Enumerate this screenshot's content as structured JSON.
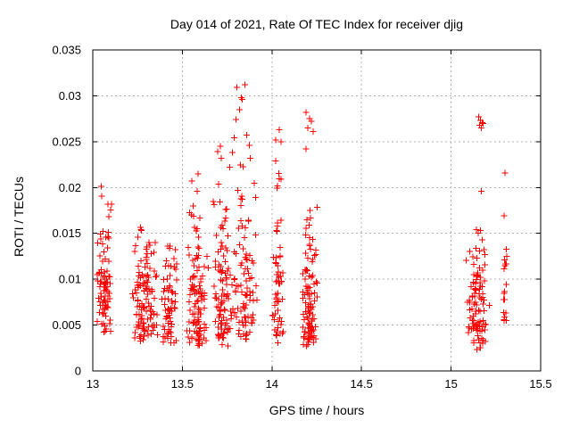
{
  "chart_data": {
    "type": "scatter",
    "title": "Day 014 of 2021, Rate Of TEC Index for receiver djig",
    "xlabel": "GPS time / hours",
    "ylabel": "ROTI / TECUs",
    "xlim": [
      13,
      15.5
    ],
    "ylim": [
      0,
      0.035
    ],
    "x_ticks": [
      13,
      13.5,
      14,
      14.5,
      15,
      15.5
    ],
    "x_tick_labels": [
      "13",
      "13.5",
      "14",
      "14.5",
      "15",
      "15.5"
    ],
    "y_ticks": [
      0,
      0.005,
      0.01,
      0.015,
      0.02,
      0.025,
      0.03,
      0.035
    ],
    "y_tick_labels": [
      "0",
      "0.005",
      "0.01",
      "0.015",
      "0.02",
      "0.025",
      "0.03",
      "0.035"
    ],
    "grid": true,
    "grid_color": "#b0b0b0",
    "frame_color": "#000000",
    "marker": {
      "shape": "plus",
      "color": "#ff0000",
      "size": 7
    },
    "seed": 7,
    "clusters": [
      {
        "name": "arc-13.06",
        "x_center": 13.065,
        "x_halfwidth": 0.045,
        "bands": [
          [
            0.0042,
            0.006,
            10
          ],
          [
            0.006,
            0.0085,
            28
          ],
          [
            0.0085,
            0.0105,
            22
          ],
          [
            0.0105,
            0.013,
            12
          ],
          [
            0.013,
            0.016,
            10
          ],
          [
            0.016,
            0.0185,
            4
          ],
          [
            0.019,
            0.0206,
            2
          ]
        ]
      },
      {
        "name": "arc-13.29",
        "x_center": 13.295,
        "x_halfwidth": 0.075,
        "bands": [
          [
            0.0032,
            0.0045,
            15
          ],
          [
            0.0045,
            0.007,
            35
          ],
          [
            0.007,
            0.0095,
            30
          ],
          [
            0.0095,
            0.012,
            20
          ],
          [
            0.012,
            0.0145,
            12
          ],
          [
            0.0145,
            0.016,
            4
          ]
        ]
      },
      {
        "name": "arc-13.43",
        "x_center": 13.43,
        "x_halfwidth": 0.05,
        "bands": [
          [
            0.003,
            0.0045,
            12
          ],
          [
            0.0045,
            0.007,
            22
          ],
          [
            0.007,
            0.0095,
            16
          ],
          [
            0.0095,
            0.012,
            10
          ],
          [
            0.012,
            0.0152,
            6
          ]
        ]
      },
      {
        "name": "arc-13.58",
        "x_center": 13.585,
        "x_halfwidth": 0.065,
        "bands": [
          [
            0.0026,
            0.004,
            16
          ],
          [
            0.004,
            0.0065,
            28
          ],
          [
            0.0065,
            0.009,
            26
          ],
          [
            0.009,
            0.0115,
            18
          ],
          [
            0.0115,
            0.014,
            10
          ],
          [
            0.014,
            0.017,
            6
          ],
          [
            0.017,
            0.0205,
            4
          ],
          [
            0.0205,
            0.0225,
            2
          ]
        ]
      },
      {
        "name": "arc-13.72",
        "x_center": 13.72,
        "x_halfwidth": 0.055,
        "bands": [
          [
            0.0026,
            0.004,
            10
          ],
          [
            0.004,
            0.0065,
            24
          ],
          [
            0.0065,
            0.009,
            22
          ],
          [
            0.009,
            0.0115,
            16
          ],
          [
            0.0115,
            0.014,
            10
          ],
          [
            0.014,
            0.017,
            7
          ],
          [
            0.017,
            0.02,
            5
          ],
          [
            0.02,
            0.0246,
            4
          ]
        ]
      },
      {
        "name": "arc-13.85",
        "x_center": 13.845,
        "x_halfwidth": 0.075,
        "bands": [
          [
            0.003,
            0.0045,
            10
          ],
          [
            0.0045,
            0.0065,
            18
          ],
          [
            0.0065,
            0.009,
            20
          ],
          [
            0.009,
            0.0115,
            16
          ],
          [
            0.0115,
            0.014,
            12
          ],
          [
            0.014,
            0.017,
            8
          ],
          [
            0.017,
            0.02,
            6
          ],
          [
            0.02,
            0.023,
            3
          ]
        ]
      },
      {
        "name": "arc-14.03",
        "x_center": 14.035,
        "x_halfwidth": 0.035,
        "bands": [
          [
            0.003,
            0.005,
            10
          ],
          [
            0.005,
            0.008,
            16
          ],
          [
            0.008,
            0.011,
            14
          ],
          [
            0.011,
            0.014,
            8
          ],
          [
            0.014,
            0.017,
            5
          ],
          [
            0.017,
            0.022,
            4
          ]
        ]
      },
      {
        "name": "arc-14.21",
        "x_center": 14.21,
        "x_halfwidth": 0.045,
        "bands": [
          [
            0.0026,
            0.004,
            18
          ],
          [
            0.004,
            0.0065,
            30
          ],
          [
            0.0065,
            0.009,
            24
          ],
          [
            0.009,
            0.0115,
            16
          ],
          [
            0.0115,
            0.014,
            10
          ],
          [
            0.014,
            0.0165,
            6
          ],
          [
            0.0165,
            0.018,
            3
          ]
        ]
      },
      {
        "name": "arc-15.14",
        "x_center": 15.145,
        "x_halfwidth": 0.07,
        "bands": [
          [
            0.0023,
            0.004,
            12
          ],
          [
            0.004,
            0.0065,
            30
          ],
          [
            0.0065,
            0.009,
            28
          ],
          [
            0.009,
            0.0115,
            18
          ],
          [
            0.0115,
            0.014,
            10
          ],
          [
            0.014,
            0.0155,
            4
          ]
        ]
      },
      {
        "name": "arc-15.30",
        "x_center": 15.3,
        "x_halfwidth": 0.012,
        "bands": [
          [
            0.0045,
            0.006,
            4
          ],
          [
            0.006,
            0.009,
            6
          ],
          [
            0.009,
            0.012,
            5
          ],
          [
            0.012,
            0.0135,
            3
          ]
        ]
      }
    ],
    "outliers": [
      [
        13.805,
        0.0309
      ],
      [
        13.85,
        0.0312
      ],
      [
        13.83,
        0.0298
      ],
      [
        13.835,
        0.0296
      ],
      [
        13.82,
        0.0285
      ],
      [
        13.8,
        0.0274
      ],
      [
        13.86,
        0.0257
      ],
      [
        13.79,
        0.0254
      ],
      [
        13.875,
        0.0246
      ],
      [
        13.78,
        0.0238
      ],
      [
        13.765,
        0.0222
      ],
      [
        13.88,
        0.0232
      ],
      [
        14.04,
        0.0263
      ],
      [
        14.02,
        0.0252
      ],
      [
        14.05,
        0.025
      ],
      [
        14.02,
        0.0229
      ],
      [
        14.05,
        0.0209
      ],
      [
        14.19,
        0.0282
      ],
      [
        14.21,
        0.0275
      ],
      [
        14.22,
        0.0272
      ],
      [
        14.2,
        0.0265
      ],
      [
        14.23,
        0.0261
      ],
      [
        14.19,
        0.0242
      ],
      [
        15.155,
        0.0277
      ],
      [
        15.165,
        0.0273
      ],
      [
        15.175,
        0.0271
      ],
      [
        15.16,
        0.0268
      ],
      [
        15.17,
        0.0265
      ],
      [
        15.18,
        0.027
      ],
      [
        15.17,
        0.0196
      ],
      [
        15.3,
        0.0216
      ],
      [
        15.295,
        0.0169
      ]
    ]
  }
}
